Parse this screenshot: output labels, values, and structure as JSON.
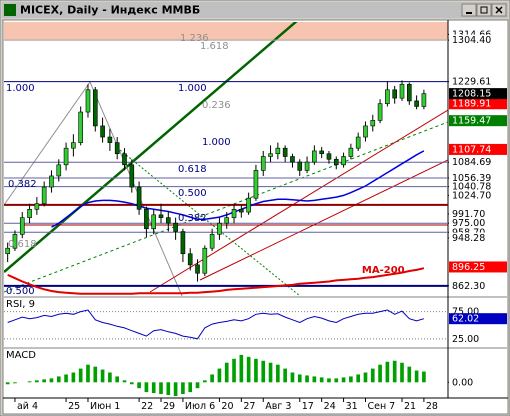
{
  "window_title": "MICEX, Daily - Индекс ММВБ",
  "chart_data": [
    {
      "type": "candlestick",
      "open": [
        920,
        930,
        955,
        985,
        1000,
        1010,
        1040,
        1060,
        1080,
        1110,
        1120,
        1175,
        1215,
        1150,
        1130,
        1120,
        1100,
        1080,
        1040,
        1000,
        965,
        990,
        985,
        975,
        960,
        920,
        900,
        885,
        930,
        955,
        975,
        985,
        1000,
        995,
        1020,
        1070,
        1095,
        1100,
        1110,
        1095,
        1085,
        1070,
        1085,
        1105,
        1100,
        1090,
        1080,
        1095,
        1110,
        1130,
        1150,
        1160,
        1190,
        1215,
        1200,
        1225,
        1195,
        1185
      ],
      "high": [
        940,
        962,
        995,
        1010,
        1022,
        1050,
        1070,
        1090,
        1120,
        1135,
        1185,
        1225,
        1220,
        1165,
        1145,
        1130,
        1110,
        1090,
        1050,
        1005,
        1000,
        1010,
        995,
        985,
        965,
        930,
        910,
        935,
        965,
        985,
        995,
        1010,
        1008,
        1030,
        1080,
        1105,
        1115,
        1120,
        1115,
        1100,
        1090,
        1095,
        1115,
        1112,
        1105,
        1095,
        1102,
        1118,
        1138,
        1158,
        1170,
        1198,
        1230,
        1222,
        1232,
        1228,
        1205,
        1215
      ],
      "low": [
        905,
        925,
        948,
        975,
        990,
        1005,
        1030,
        1050,
        1070,
        1095,
        1115,
        1165,
        1140,
        1120,
        1105,
        1090,
        1070,
        1030,
        990,
        950,
        955,
        975,
        960,
        945,
        905,
        890,
        870,
        880,
        925,
        945,
        965,
        975,
        985,
        990,
        1015,
        1060,
        1085,
        1090,
        1085,
        1075,
        1060,
        1065,
        1080,
        1092,
        1082,
        1072,
        1075,
        1090,
        1105,
        1122,
        1140,
        1155,
        1185,
        1190,
        1195,
        1188,
        1180,
        1180
      ],
      "close": [
        930,
        955,
        985,
        1000,
        1010,
        1040,
        1060,
        1080,
        1110,
        1120,
        1175,
        1215,
        1150,
        1130,
        1120,
        1100,
        1080,
        1040,
        1000,
        965,
        990,
        985,
        975,
        960,
        920,
        900,
        885,
        930,
        955,
        975,
        985,
        1000,
        995,
        1020,
        1070,
        1095,
        1100,
        1110,
        1095,
        1085,
        1070,
        1085,
        1105,
        1100,
        1090,
        1080,
        1095,
        1110,
        1130,
        1150,
        1160,
        1190,
        1215,
        1200,
        1225,
        1195,
        1185,
        1208.15
      ],
      "up_color": "#32cd32",
      "down_color": "#006400",
      "xlim": [
        0,
        60.8
      ],
      "xticks": [
        {
          "value": 1,
          "label": "ай 4"
        },
        {
          "value": 8,
          "label": "25"
        },
        {
          "value": 11,
          "label": "Июн 1"
        },
        {
          "value": 18,
          "label": "22"
        },
        {
          "value": 21,
          "label": "29"
        },
        {
          "value": 24,
          "label": "Июл 6"
        },
        {
          "value": 29,
          "label": "20"
        },
        {
          "value": 32,
          "label": "27"
        },
        {
          "value": 35,
          "label": "Авг 3"
        },
        {
          "value": 40,
          "label": "17"
        },
        {
          "value": 43,
          "label": "24"
        },
        {
          "value": 46,
          "label": "31"
        },
        {
          "value": 49,
          "label": "Сен 7"
        },
        {
          "value": 54,
          "label": "21"
        },
        {
          "value": 57,
          "label": "28"
        }
      ],
      "ylim": [
        844,
        1337
      ],
      "yticks": [
        1314.66,
        {
          "value": 1304.4,
          "label": "1304.40"
        },
        1229.61,
        1084.69,
        1056.39,
        1040.78,
        {
          "value": 1024.7,
          "label": "1024.70"
        },
        {
          "value": 991.7,
          "label": "991.70"
        },
        {
          "value": 975,
          "label": "975.00"
        },
        {
          "value": 958.7,
          "label": "958.70"
        },
        948.28,
        {
          "value": 862.3,
          "label": "862.30"
        }
      ],
      "price_labels": [
        {
          "value": 1189.91,
          "color": "#ff0000"
        },
        {
          "value": 1159.47,
          "color": "#008000"
        },
        {
          "value": 1107.74,
          "color": "#ff0000"
        },
        {
          "value": 896.25,
          "color": "#ff0000"
        }
      ],
      "levels": [
        {
          "value": 1304.4,
          "color": "#a0a0a0",
          "width": 1
        },
        {
          "value": 1229.61,
          "color": "#000080",
          "width": 1
        },
        {
          "value": 1084.69,
          "color": "#6060a0",
          "width": 1
        },
        {
          "value": 1056.39,
          "color": "#6060a0",
          "width": 1
        },
        {
          "value": 1040.78,
          "color": "#6060a0",
          "width": 1
        },
        {
          "value": 1008,
          "color": "#8b0000",
          "width": 2
        },
        {
          "value": 975,
          "color": "#6060a0",
          "width": 1
        },
        {
          "value": 958.7,
          "color": "#6060a0",
          "width": 1
        },
        {
          "value": 862.3,
          "color": "#000080",
          "width": 2
        }
      ],
      "series": [
        {
          "name": "MA-200",
          "color": "#e00000",
          "values": [
            882,
            876,
            870,
            865,
            860,
            856,
            853,
            851,
            850,
            849,
            848,
            848,
            848,
            848,
            848,
            848,
            848,
            848,
            849,
            849,
            849,
            849,
            849,
            849,
            849,
            850,
            850,
            851,
            852,
            853,
            855,
            856,
            857,
            858,
            859,
            860,
            861,
            862,
            863,
            864,
            866,
            867,
            868,
            869,
            870,
            872,
            873,
            874,
            875,
            877,
            878,
            880,
            882,
            884,
            886,
            889,
            891,
            894
          ]
        },
        {
          "color": "#0000e0",
          "values": [
            null,
            null,
            null,
            null,
            null,
            null,
            968,
            975,
            985,
            995,
            1005,
            1012,
            1015,
            1016,
            1016,
            1015,
            1013,
            1010,
            1006,
            1002,
            1000,
            998,
            996,
            993,
            990,
            986,
            982,
            982,
            984,
            986,
            990,
            995,
            1000,
            1005,
            1010,
            1014,
            1016,
            1018,
            1018,
            1017,
            1016,
            1015,
            1016,
            1018,
            1020,
            1022,
            1025,
            1030,
            1036,
            1042,
            1050,
            1058,
            1066,
            1074,
            1082,
            1090,
            1098,
            1105
          ]
        }
      ],
      "fib_labels": [
        "1.236",
        "1.618",
        "1.000",
        "1.000",
        "0.236",
        "1.000",
        "0.618",
        "0.500",
        "0.382",
        "0.382",
        "0.618",
        "0.500"
      ]
    },
    {
      "type": "line",
      "title": "RSI, 9",
      "color": "#0000c0",
      "values": [
        55,
        60,
        65,
        62,
        64,
        68,
        66,
        70,
        72,
        70,
        75,
        78,
        60,
        55,
        52,
        48,
        45,
        40,
        35,
        30,
        40,
        42,
        38,
        35,
        30,
        28,
        25,
        45,
        52,
        55,
        57,
        60,
        58,
        62,
        70,
        72,
        70,
        71,
        65,
        60,
        55,
        62,
        66,
        63,
        58,
        55,
        62,
        66,
        70,
        72,
        72,
        75,
        78,
        70,
        76,
        62,
        58,
        62.02
      ],
      "ylim": [
        10,
        100
      ],
      "yticks": [
        {
          "value": 75,
          "label": "75.00"
        },
        {
          "value": 25,
          "label": "25.00"
        }
      ]
    },
    {
      "type": "bar",
      "title": "MACD",
      "color": "#00a000",
      "values": [
        -2,
        -1,
        0,
        1,
        2,
        3,
        4,
        6,
        8,
        10,
        14,
        18,
        16,
        13,
        10,
        6,
        2,
        -2,
        -6,
        -10,
        -11,
        -12,
        -13,
        -14,
        -12,
        -10,
        -6,
        2,
        8,
        14,
        20,
        24,
        28,
        26,
        24,
        22,
        20,
        18,
        14,
        10,
        8,
        7,
        6,
        5,
        4,
        4,
        5,
        6,
        8,
        10,
        14,
        18,
        21,
        22,
        20,
        16,
        12,
        11
      ],
      "ylim": [
        -15,
        34
      ],
      "yticks": [
        {
          "value": 0,
          "label": "0.00"
        }
      ]
    }
  ]
}
